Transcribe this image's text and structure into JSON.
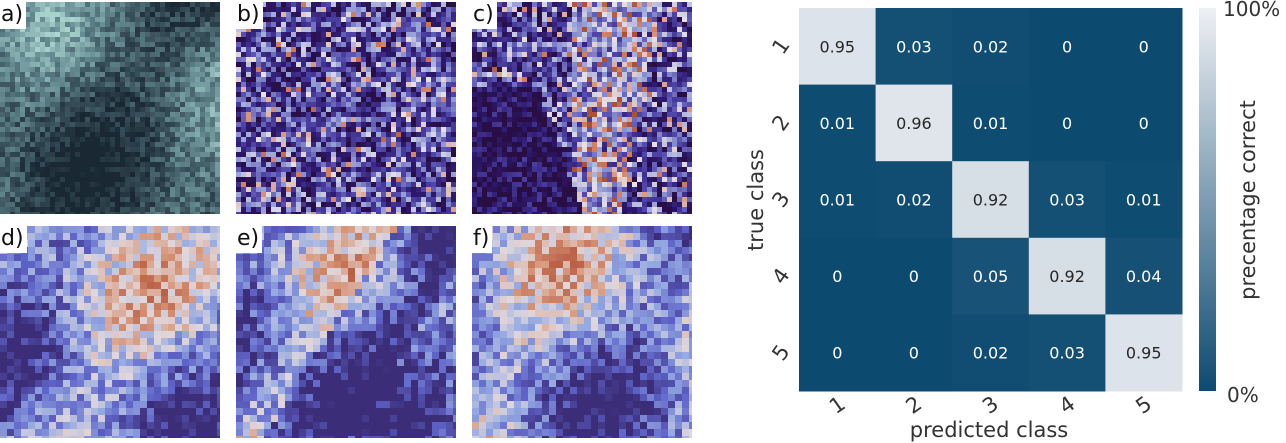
{
  "panels": [
    {
      "label": "a)",
      "style": "grayscale-micrograph"
    },
    {
      "label": "b)",
      "style": "fine-map"
    },
    {
      "label": "c)",
      "style": "smooth-map"
    },
    {
      "label": "d)",
      "style": "pixelated-map"
    },
    {
      "label": "e)",
      "style": "pixelated-map"
    },
    {
      "label": "f)",
      "style": "pixelated-map"
    }
  ],
  "chart_data": {
    "type": "heatmap",
    "title": "",
    "xlabel": "predicted class",
    "ylabel": "true class",
    "x_categories": [
      "1",
      "2",
      "3",
      "4",
      "5"
    ],
    "y_categories": [
      "1",
      "2",
      "3",
      "4",
      "5"
    ],
    "values": [
      [
        0.95,
        0.03,
        0.02,
        0,
        0
      ],
      [
        0.01,
        0.96,
        0.01,
        0,
        0
      ],
      [
        0.01,
        0.02,
        0.92,
        0.03,
        0.01
      ],
      [
        0,
        0,
        0.05,
        0.92,
        0.04
      ],
      [
        0,
        0,
        0.02,
        0.03,
        0.95
      ]
    ],
    "colorbar": {
      "label": "precentage correct",
      "min_label": "0%",
      "max_label": "100%"
    },
    "colors": {
      "low": "#0d4a70",
      "high": "#e8ebf0"
    }
  }
}
